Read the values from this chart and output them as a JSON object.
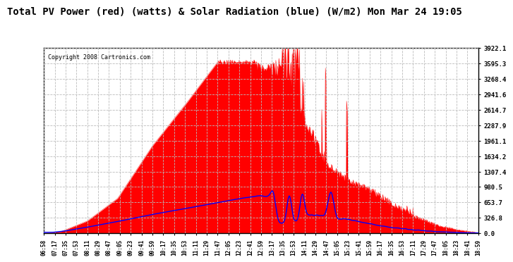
{
  "title": "Total PV Power (red) (watts) & Solar Radiation (blue) (W/m2) Mon Mar 24 19:05",
  "copyright": "Copyright 2008 Cartronics.com",
  "title_fontsize": 11,
  "background_color": "#ffffff",
  "plot_bg_color": "#ffffff",
  "grid_color": "#bbbbbb",
  "yticks": [
    0.0,
    326.8,
    653.7,
    980.5,
    1307.4,
    1634.2,
    1961.1,
    2287.9,
    2614.7,
    2941.6,
    3268.4,
    3595.3,
    3922.1
  ],
  "ymax": 3922.1,
  "ymin": 0.0,
  "red_color": "#ff0000",
  "blue_color": "#0000ff",
  "n_points": 720,
  "x_labels": [
    "06:58",
    "07:17",
    "07:35",
    "07:53",
    "08:11",
    "08:29",
    "08:47",
    "09:05",
    "09:23",
    "09:41",
    "09:59",
    "10:17",
    "10:35",
    "10:53",
    "11:11",
    "11:29",
    "11:47",
    "12:05",
    "12:23",
    "12:41",
    "12:59",
    "13:17",
    "13:35",
    "13:53",
    "14:11",
    "14:29",
    "14:47",
    "15:05",
    "15:23",
    "15:41",
    "15:59",
    "16:17",
    "16:35",
    "16:53",
    "17:11",
    "17:29",
    "17:47",
    "18:05",
    "18:23",
    "18:41",
    "18:59"
  ]
}
